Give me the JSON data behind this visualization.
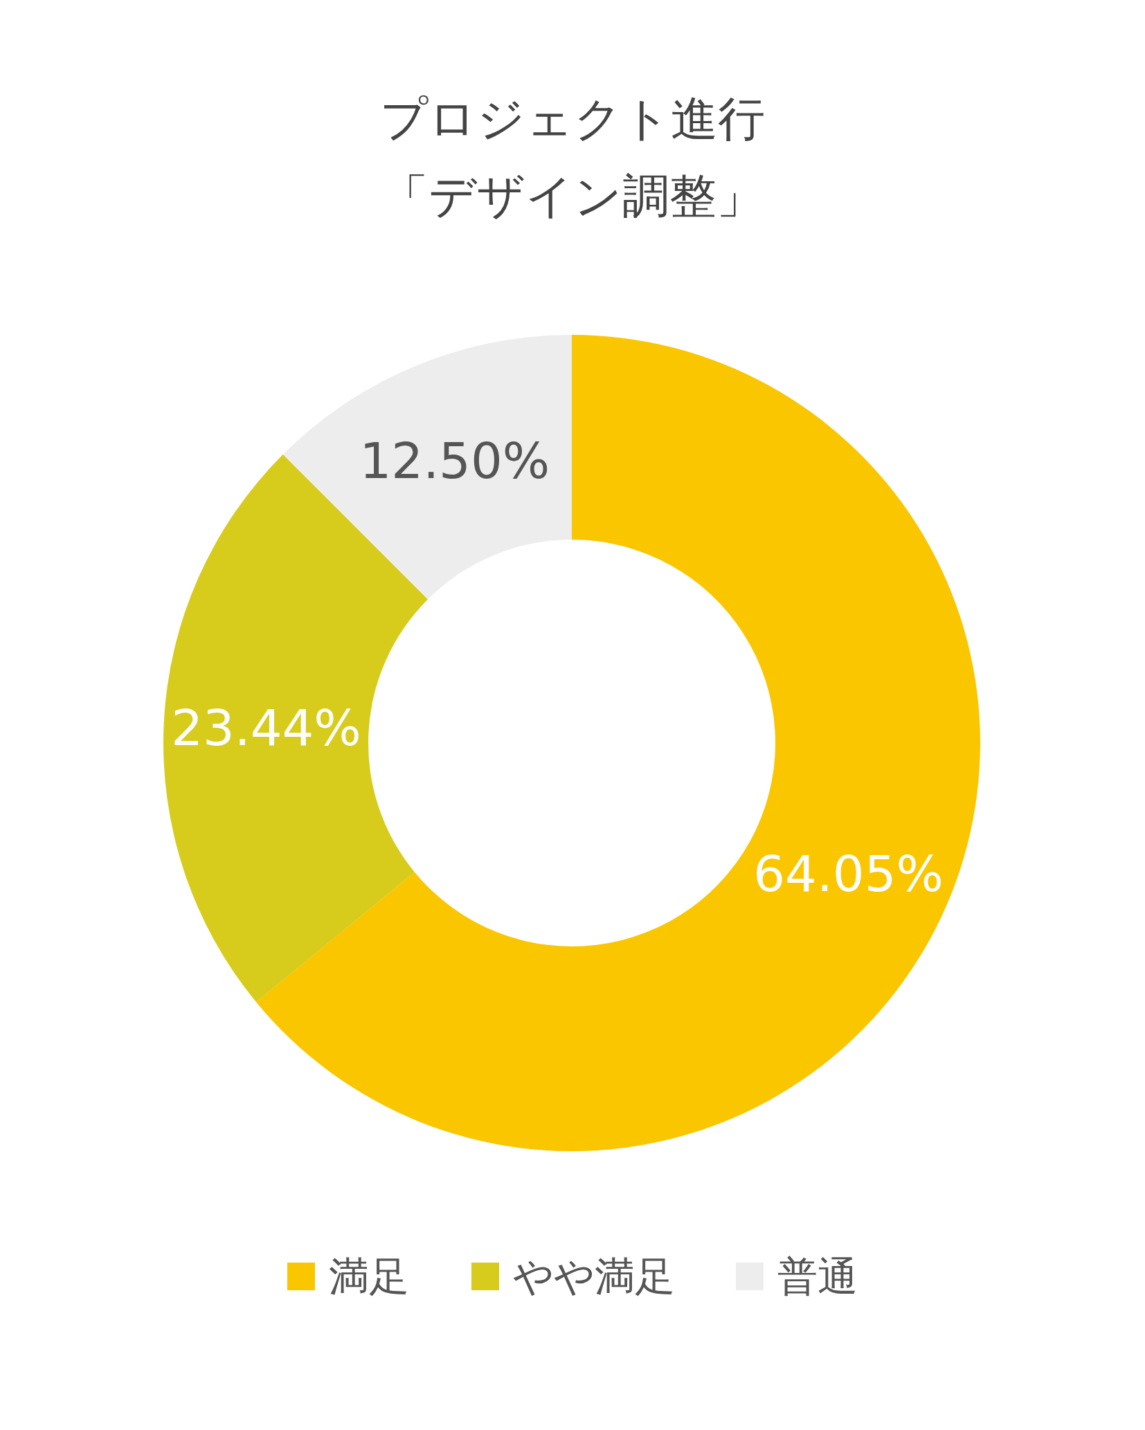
{
  "chart_data": {
    "type": "donut",
    "title": "プロジェクト進行",
    "subtitle": "「デザイン調整」",
    "categories": [
      "満足",
      "やや満足",
      "普通"
    ],
    "values": [
      64.05,
      23.44,
      12.5
    ],
    "colors": [
      "#f9c600",
      "#d7cb1b",
      "#ededed"
    ],
    "value_labels": [
      "64.05%",
      "23.44%",
      "12.50%"
    ],
    "legend": "bottom"
  }
}
